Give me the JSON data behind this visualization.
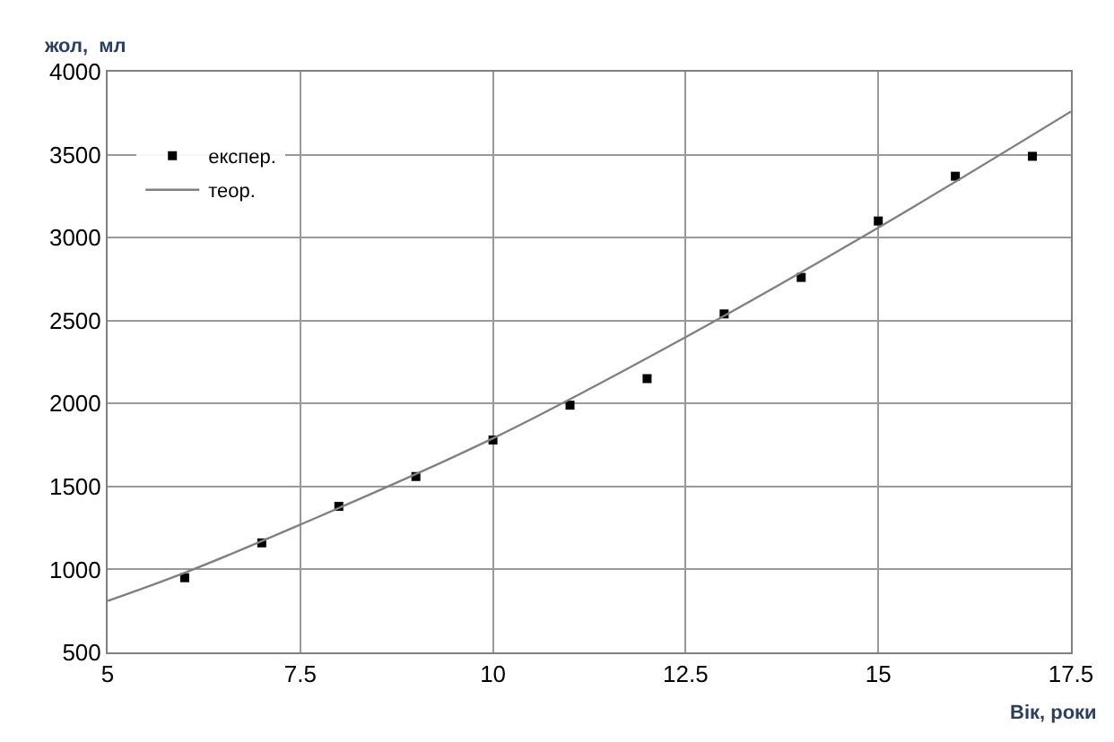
{
  "chart_data": {
    "type": "scatter",
    "xlabel": "Вік, роки",
    "ylabel": "жол,  мл",
    "xlim": [
      5,
      17.5
    ],
    "xticks": [
      5,
      7.5,
      10,
      12.5,
      15,
      17.5
    ],
    "ylim": [
      500,
      4000
    ],
    "yticks": [
      500,
      1000,
      1500,
      2000,
      2500,
      3000,
      3500,
      4000
    ],
    "grid": true,
    "legend": "top left",
    "series": [
      {
        "name": "експер.",
        "marker": "square",
        "color": "#000000",
        "x": [
          6,
          7,
          8,
          9,
          10,
          11,
          12,
          13,
          14,
          15,
          16,
          17
        ],
        "values": [
          950,
          1160,
          1380,
          1560,
          1780,
          1990,
          2150,
          2540,
          2760,
          3100,
          3370,
          3490
        ]
      },
      {
        "name": "теор.",
        "type": "line",
        "marker": "none",
        "color": "#808080",
        "x": [
          5,
          6,
          7.5,
          10,
          12.5,
          15,
          17.5
        ],
        "values": [
          810,
          980,
          1270,
          1790,
          2400,
          3060,
          3760
        ]
      }
    ]
  }
}
